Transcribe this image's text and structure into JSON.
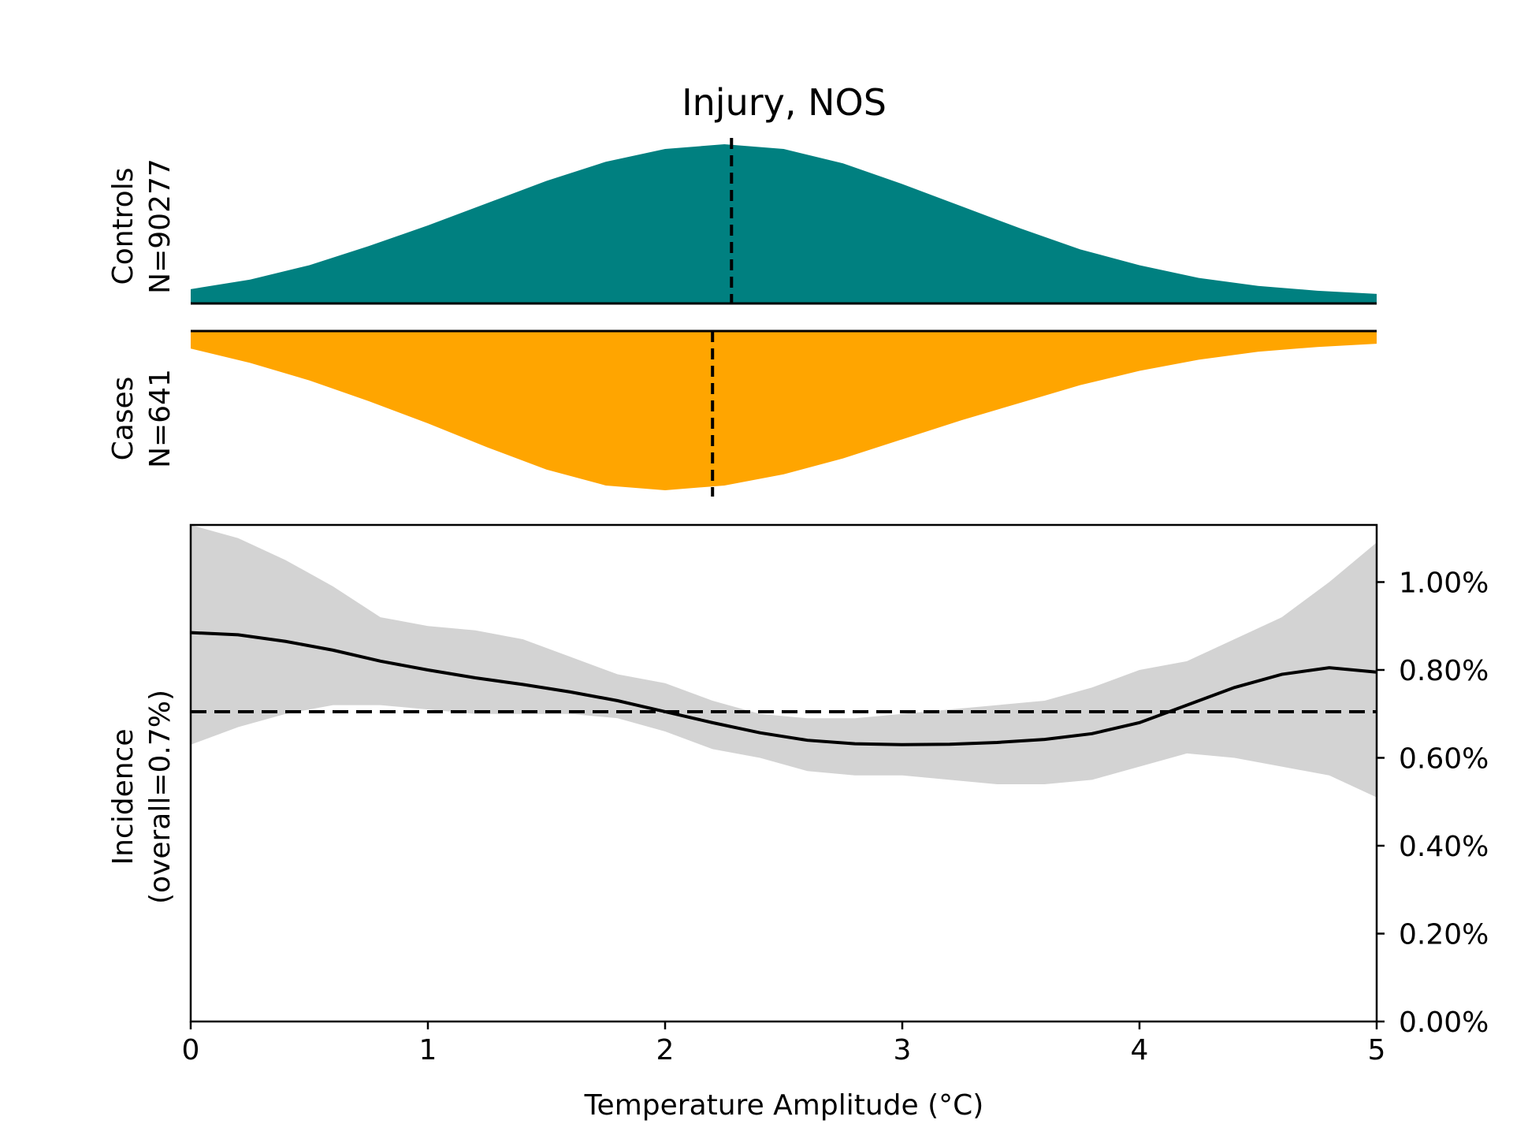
{
  "chart_data": {
    "type": "area",
    "title": "Injury, NOS",
    "xlabel": "Temperature Amplitude (°C)",
    "xlim": [
      0,
      5
    ],
    "x_ticks": [
      0,
      1,
      2,
      3,
      4,
      5
    ],
    "x_tick_labels": [
      "0",
      "1",
      "2",
      "3",
      "4",
      "5"
    ],
    "colors": {
      "controls": "#008080",
      "cases": "#FFA500",
      "ci_band": "#D3D3D3",
      "line": "#000000"
    },
    "controls": {
      "label_line1": "Controls",
      "label_line2": "N=90277",
      "mean": 2.28,
      "x": [
        0,
        0.25,
        0.5,
        0.75,
        1.0,
        1.25,
        1.5,
        1.75,
        2.0,
        2.25,
        2.5,
        2.75,
        3.0,
        3.25,
        3.5,
        3.75,
        4.0,
        4.25,
        4.5,
        4.75,
        5.0
      ],
      "density": [
        0.09,
        0.15,
        0.24,
        0.36,
        0.49,
        0.63,
        0.77,
        0.89,
        0.97,
        1.0,
        0.97,
        0.88,
        0.75,
        0.61,
        0.47,
        0.34,
        0.24,
        0.16,
        0.11,
        0.08,
        0.06
      ]
    },
    "cases": {
      "label_line1": "Cases",
      "label_line2": "N=641",
      "mean": 2.2,
      "x": [
        0,
        0.25,
        0.5,
        0.75,
        1.0,
        1.25,
        1.5,
        1.75,
        2.0,
        2.25,
        2.5,
        2.75,
        3.0,
        3.25,
        3.5,
        3.75,
        4.0,
        4.25,
        4.5,
        4.75,
        5.0
      ],
      "density": [
        0.11,
        0.2,
        0.31,
        0.44,
        0.58,
        0.73,
        0.87,
        0.97,
        1.0,
        0.97,
        0.9,
        0.8,
        0.68,
        0.56,
        0.45,
        0.34,
        0.25,
        0.18,
        0.13,
        0.1,
        0.08
      ]
    },
    "incidence": {
      "ylabel_line1": "Incidence",
      "ylabel_line2": "(overall=0.7%)",
      "ylim": [
        0,
        1.13
      ],
      "y_ticks": [
        0,
        0.2,
        0.4,
        0.6,
        0.8,
        1.0
      ],
      "y_tick_labels": [
        "0.00%",
        "0.20%",
        "0.40%",
        "0.60%",
        "0.80%",
        "1.00%"
      ],
      "overall": 0.705,
      "x": [
        0,
        0.2,
        0.4,
        0.6,
        0.8,
        1.0,
        1.2,
        1.4,
        1.6,
        1.8,
        2.0,
        2.2,
        2.4,
        2.6,
        2.8,
        3.0,
        3.2,
        3.4,
        3.6,
        3.8,
        4.0,
        4.2,
        4.4,
        4.6,
        4.8,
        5.0
      ],
      "estimate": [
        0.885,
        0.88,
        0.865,
        0.845,
        0.82,
        0.8,
        0.782,
        0.767,
        0.75,
        0.73,
        0.705,
        0.68,
        0.657,
        0.64,
        0.632,
        0.63,
        0.631,
        0.635,
        0.642,
        0.655,
        0.68,
        0.72,
        0.76,
        0.79,
        0.805,
        0.795
      ],
      "ci_lower": [
        0.63,
        0.67,
        0.7,
        0.72,
        0.72,
        0.71,
        0.7,
        0.7,
        0.7,
        0.69,
        0.66,
        0.62,
        0.6,
        0.57,
        0.56,
        0.56,
        0.55,
        0.54,
        0.54,
        0.55,
        0.58,
        0.61,
        0.6,
        0.58,
        0.56,
        0.51
      ],
      "ci_upper": [
        1.13,
        1.1,
        1.05,
        0.99,
        0.92,
        0.9,
        0.89,
        0.87,
        0.83,
        0.79,
        0.77,
        0.73,
        0.7,
        0.69,
        0.69,
        0.7,
        0.71,
        0.72,
        0.73,
        0.76,
        0.8,
        0.82,
        0.87,
        0.92,
        1.0,
        1.09
      ]
    }
  }
}
